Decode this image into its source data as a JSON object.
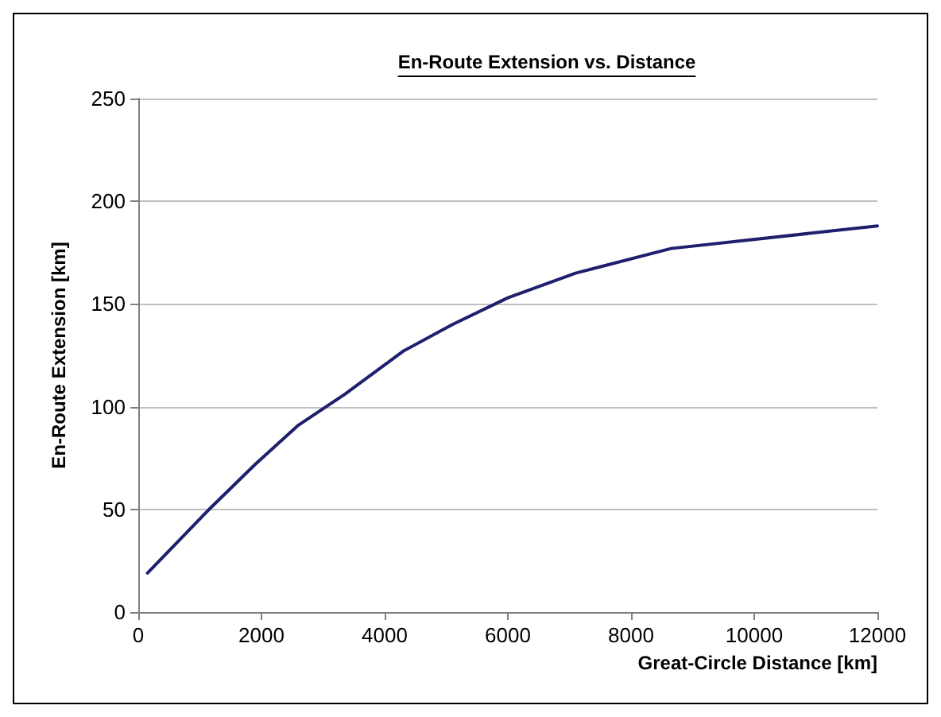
{
  "chart_data": {
    "type": "line",
    "title": "En-Route Extension vs. Distance",
    "xlabel": "Great-Circle Distance [km]",
    "ylabel": "En-Route Extension [km]",
    "x": [
      150,
      1150,
      1900,
      2600,
      3350,
      4300,
      5100,
      6000,
      7100,
      8650,
      12000
    ],
    "series": [
      {
        "color": "#1f1f6e",
        "values": [
          19,
          50,
          72,
          91,
          106,
          127,
          140,
          153,
          165,
          177,
          188
        ]
      }
    ],
    "xlim": [
      0,
      12000
    ],
    "xticks": [
      0,
      2000,
      4000,
      6000,
      8000,
      10000,
      12000
    ],
    "ylim": [
      0,
      250
    ],
    "yticks": [
      0,
      50,
      100,
      150,
      200,
      250
    ],
    "grid": "y",
    "marker": "none",
    "line_style": "solid"
  }
}
